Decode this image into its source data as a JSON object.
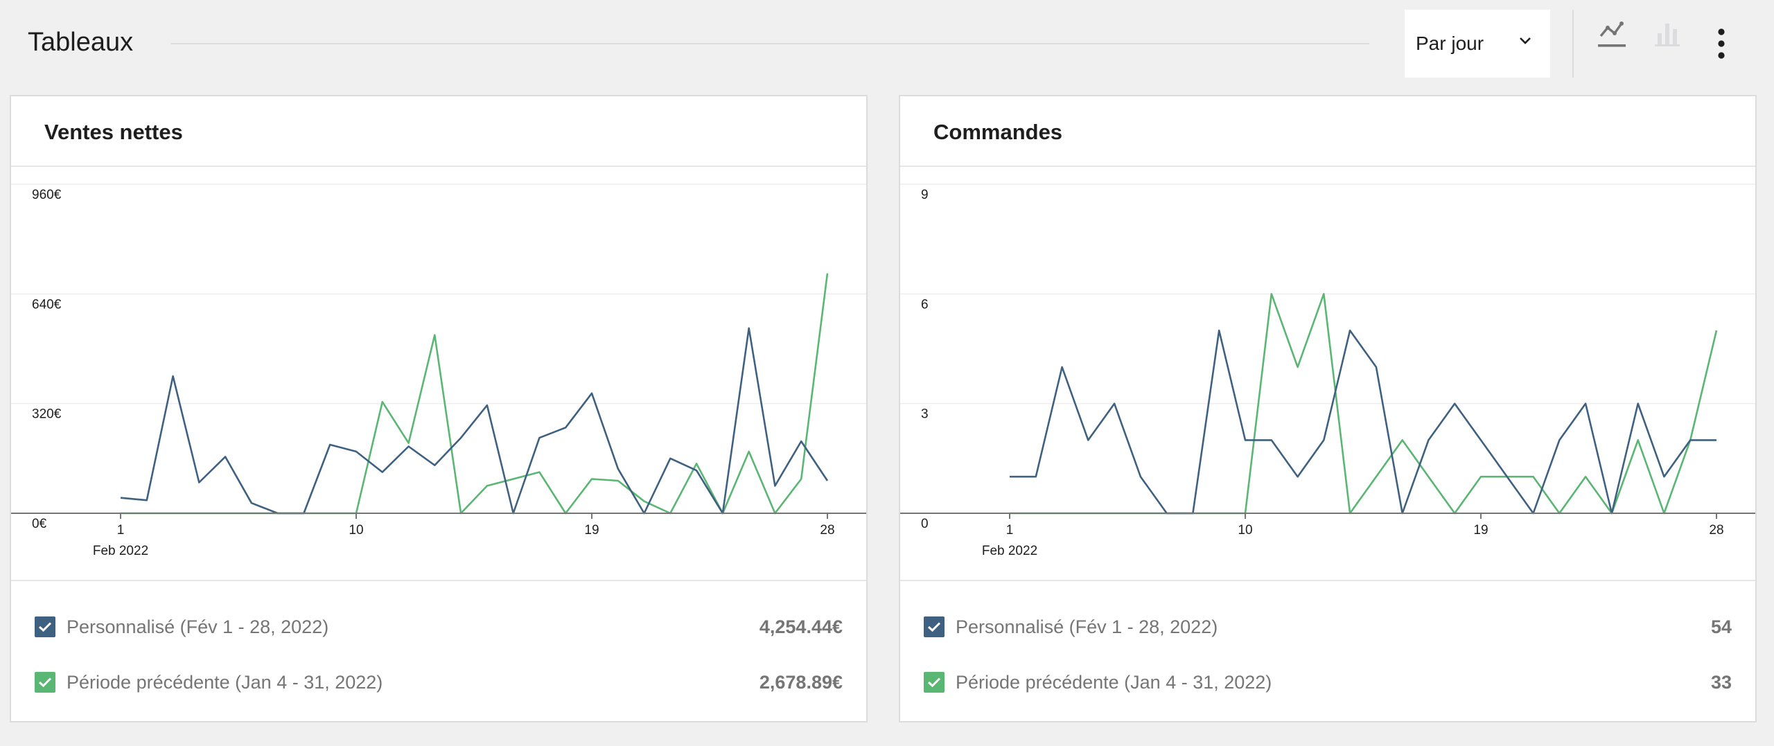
{
  "header": {
    "title": "Tableaux",
    "interval": "Par jour"
  },
  "icons": {
    "line_chart": "line-chart-icon",
    "bar_chart": "bar-chart-icon",
    "more": "more-vertical-icon",
    "dropdown": "chevron-down-icon",
    "check": "check-icon"
  },
  "colors": {
    "current": "#3f6181",
    "previous": "#5ab673",
    "grid": "#ededed",
    "axis": "#757575"
  },
  "chart_data": [
    {
      "type": "line",
      "title": "Ventes nettes",
      "x": [
        1,
        2,
        3,
        4,
        5,
        6,
        7,
        8,
        9,
        10,
        11,
        12,
        13,
        14,
        15,
        16,
        17,
        18,
        19,
        20,
        21,
        22,
        23,
        24,
        25,
        26,
        27,
        28
      ],
      "x_ticks": [
        1,
        10,
        19,
        28
      ],
      "x_subtitle": "Feb 2022",
      "y_ticks": [
        "0€",
        "320€",
        "640€",
        "960€"
      ],
      "ylim": [
        0,
        960
      ],
      "grid": true,
      "series": [
        {
          "name": "Personnalisé (Fév 1 - 28, 2022)",
          "total": "4,254.44€",
          "color": "#3f6181",
          "values": [
            45,
            38,
            400,
            90,
            165,
            30,
            0,
            0,
            200,
            180,
            120,
            195,
            140,
            220,
            315,
            0,
            220,
            250,
            350,
            130,
            0,
            160,
            125,
            0,
            540,
            80,
            210,
            95
          ]
        },
        {
          "name": "Période précédente (Jan 4 - 31, 2022)",
          "total": "2,678.89€",
          "color": "#5ab673",
          "values": [
            0,
            0,
            0,
            0,
            0,
            0,
            0,
            0,
            0,
            0,
            325,
            205,
            520,
            0,
            80,
            100,
            120,
            0,
            100,
            95,
            35,
            0,
            145,
            0,
            180,
            0,
            100,
            700
          ]
        }
      ]
    },
    {
      "type": "line",
      "title": "Commandes",
      "x": [
        1,
        2,
        3,
        4,
        5,
        6,
        7,
        8,
        9,
        10,
        11,
        12,
        13,
        14,
        15,
        16,
        17,
        18,
        19,
        20,
        21,
        22,
        23,
        24,
        25,
        26,
        27,
        28
      ],
      "x_ticks": [
        1,
        10,
        19,
        28
      ],
      "x_subtitle": "Feb 2022",
      "y_ticks": [
        "0",
        "3",
        "6",
        "9"
      ],
      "ylim": [
        0,
        9
      ],
      "grid": true,
      "series": [
        {
          "name": "Personnalisé (Fév 1 - 28, 2022)",
          "total": "54",
          "color": "#3f6181",
          "values": [
            1,
            1,
            4,
            2,
            3,
            1,
            0,
            0,
            5,
            2,
            2,
            1,
            2,
            5,
            4,
            0,
            2,
            3,
            2,
            1,
            0,
            2,
            3,
            0,
            3,
            1,
            2,
            2
          ]
        },
        {
          "name": "Période précédente (Jan 4 - 31, 2022)",
          "total": "33",
          "color": "#5ab673",
          "values": [
            0,
            0,
            0,
            0,
            0,
            0,
            0,
            0,
            0,
            0,
            6,
            4,
            6,
            0,
            1,
            2,
            1,
            0,
            1,
            1,
            1,
            0,
            1,
            0,
            2,
            0,
            2,
            5
          ]
        }
      ]
    }
  ]
}
